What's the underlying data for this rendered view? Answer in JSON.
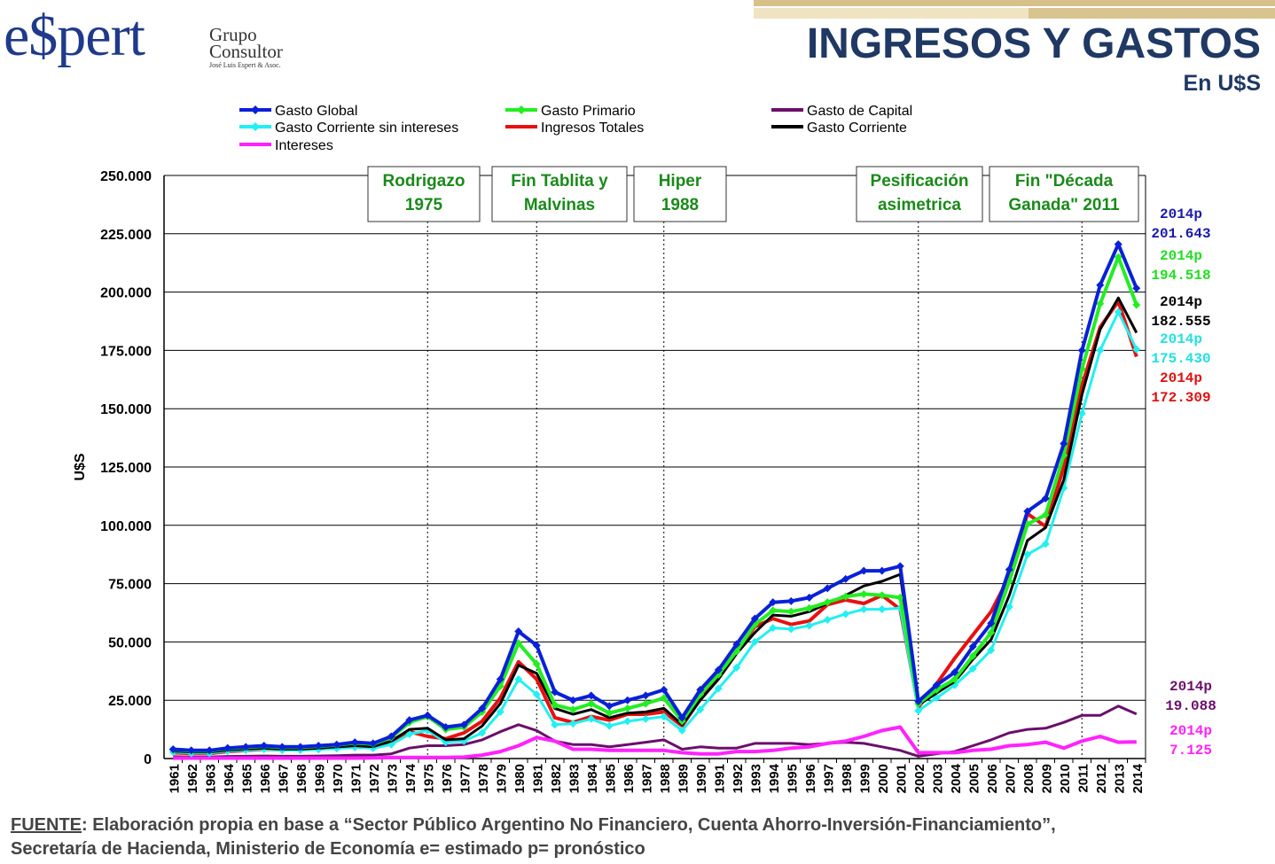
{
  "logo": {
    "word": "e$pert",
    "line1": "Grupo",
    "line2": "Consultor",
    "tagline": "José Luis Espert & Asoc."
  },
  "header": {
    "title": "INGRESOS Y GASTOS",
    "subtitle": "En U$S"
  },
  "footer": {
    "source_label": "FUENTE",
    "text_line1": ": Elaboración propia en base a “Sector Público Argentino No Financiero, Cuenta Ahorro-Inversión-Financiamiento”,",
    "text_line2": "Secretaría de Hacienda, Ministerio de Economía e= estimado p= pronóstico"
  },
  "chart_data": {
    "type": "line",
    "ylabel": "U$S",
    "ylim": [
      0,
      250000
    ],
    "yticks": [
      0,
      25000,
      50000,
      75000,
      100000,
      125000,
      150000,
      175000,
      200000,
      225000,
      250000
    ],
    "ytick_labels": [
      "0",
      "25.000",
      "50.000",
      "75.000",
      "100.000",
      "125.000",
      "150.000",
      "175.000",
      "200.000",
      "225.000",
      "250.000"
    ],
    "grid": "horizontal",
    "categories": [
      "1961",
      "1962",
      "1963",
      "1964",
      "1965",
      "1966",
      "1967",
      "1968",
      "1969",
      "1970",
      "1971",
      "1972",
      "1973",
      "1974",
      "1975",
      "1976",
      "1977",
      "1978",
      "1979",
      "1980",
      "1981",
      "1982",
      "1983",
      "1984",
      "1985",
      "1986",
      "1987",
      "1988",
      "1989",
      "1990",
      "1991",
      "1992",
      "1993",
      "1994",
      "1995",
      "1996",
      "1997",
      "1998",
      "1999",
      "2000",
      "2001",
      "2002",
      "2003",
      "2004",
      "2005",
      "2006",
      "2007",
      "2008",
      "2009",
      "2010",
      "2011",
      "2012",
      "2013",
      "2014"
    ],
    "legend": [
      {
        "name": "Gasto Global",
        "color": "#0a20d8",
        "marker": "diamond"
      },
      {
        "name": "Gasto Primario",
        "color": "#22ee22",
        "marker": "diamond"
      },
      {
        "name": "Gasto de Capital",
        "color": "#6a0f6a",
        "marker": "none"
      },
      {
        "name": "Gasto Corriente sin intereses",
        "color": "#22f0f0",
        "marker": "diamond"
      },
      {
        "name": "Ingresos Totales",
        "color": "#e81010",
        "marker": "none"
      },
      {
        "name": "Gasto Corriente",
        "color": "#000000",
        "marker": "none"
      },
      {
        "name": "Intereses",
        "color": "#ff22ff",
        "marker": "none"
      }
    ],
    "series": [
      {
        "name": "Gasto Global",
        "color": "#0a20d8",
        "marker": "diamond",
        "width": 4,
        "values": [
          4000,
          3500,
          3500,
          4500,
          5000,
          5500,
          5000,
          5000,
          5500,
          6000,
          7000,
          6500,
          9500,
          16500,
          18500,
          13500,
          14500,
          21500,
          34000,
          54500,
          48500,
          28500,
          25000,
          27000,
          22500,
          25000,
          27000,
          29500,
          17500,
          29500,
          38000,
          49000,
          60000,
          67000,
          67500,
          69000,
          73000,
          77000,
          80500,
          80500,
          82500,
          24500,
          31500,
          37000,
          48000,
          58000,
          81000,
          106000,
          111500,
          135000,
          175000,
          203000,
          220500,
          201643
        ]
      },
      {
        "name": "Gasto Primario",
        "color": "#22ee22",
        "marker": "diamond",
        "width": 4,
        "values": [
          3800,
          3300,
          3300,
          4300,
          4800,
          5300,
          4800,
          4800,
          5300,
          5800,
          6700,
          6200,
          9000,
          15500,
          18000,
          12500,
          13500,
          20000,
          31000,
          49500,
          40500,
          23000,
          21000,
          23500,
          19500,
          21500,
          23500,
          26000,
          16000,
          27500,
          36000,
          46000,
          57500,
          63500,
          63000,
          64500,
          67000,
          69500,
          70500,
          70000,
          69000,
          23500,
          29500,
          34000,
          44000,
          54000,
          76000,
          100500,
          104500,
          130000,
          167000,
          195000,
          215000,
          194518
        ]
      },
      {
        "name": "Gasto de Capital",
        "color": "#6a0f6a",
        "marker": "none",
        "width": 3,
        "values": [
          800,
          700,
          700,
          900,
          1000,
          1100,
          1000,
          1000,
          1100,
          1200,
          1500,
          1500,
          2000,
          4500,
          5500,
          5500,
          6000,
          8000,
          11500,
          14500,
          12000,
          7500,
          6000,
          6000,
          5000,
          6000,
          7000,
          8000,
          4000,
          5000,
          4500,
          4500,
          6500,
          6500,
          6500,
          6000,
          6500,
          7000,
          6500,
          5000,
          3500,
          1000,
          2000,
          3000,
          5500,
          8000,
          11000,
          12500,
          13000,
          15500,
          18500,
          18500,
          22500,
          19088
        ]
      },
      {
        "name": "Gasto Corriente sin intereses",
        "color": "#22f0f0",
        "marker": "diamond",
        "width": 3,
        "values": [
          2800,
          2300,
          2300,
          3200,
          3600,
          4000,
          3600,
          3600,
          3900,
          4300,
          4800,
          4400,
          6000,
          10500,
          12000,
          7000,
          7500,
          11000,
          20000,
          34000,
          27500,
          14500,
          15000,
          17000,
          14000,
          16000,
          17000,
          18000,
          12000,
          21000,
          30000,
          39000,
          50000,
          56000,
          55500,
          57000,
          59500,
          62000,
          64000,
          64000,
          64500,
          20500,
          26000,
          31500,
          38500,
          46500,
          65000,
          87500,
          92000,
          116000,
          148000,
          175000,
          191500,
          175430
        ]
      },
      {
        "name": "Ingresos Totales",
        "color": "#e81010",
        "marker": "none",
        "width": 4,
        "values": [
          2500,
          2200,
          2200,
          3000,
          3500,
          4000,
          3800,
          3800,
          4500,
          5500,
          6000,
          5500,
          7000,
          11500,
          9500,
          8500,
          11000,
          16000,
          26000,
          41500,
          34000,
          17500,
          15500,
          18000,
          16500,
          19000,
          19000,
          20000,
          14000,
          25500,
          36000,
          46000,
          56500,
          60000,
          57500,
          59000,
          66000,
          68000,
          66500,
          70000,
          64000,
          22000,
          32000,
          43000,
          53000,
          63000,
          78000,
          105000,
          99500,
          125000,
          160000,
          185000,
          196000,
          172309
        ]
      },
      {
        "name": "Gasto Corriente",
        "color": "#000000",
        "marker": "none",
        "width": 3,
        "values": [
          3200,
          2800,
          2800,
          3600,
          4100,
          4500,
          4100,
          4100,
          4500,
          5000,
          5500,
          5100,
          7500,
          12500,
          13000,
          8000,
          8500,
          14000,
          23500,
          40000,
          36500,
          21500,
          19000,
          21000,
          17500,
          19500,
          20000,
          21500,
          14500,
          25000,
          34000,
          45000,
          54000,
          61500,
          61000,
          63000,
          66500,
          70000,
          74000,
          76000,
          79000,
          23000,
          28000,
          33000,
          42500,
          51000,
          70000,
          93500,
          99000,
          119500,
          156000,
          184000,
          197500,
          182555
        ]
      },
      {
        "name": "Intereses",
        "color": "#ff22ff",
        "marker": "none",
        "width": 4,
        "values": [
          200,
          200,
          200,
          200,
          200,
          200,
          200,
          200,
          200,
          200,
          200,
          300,
          400,
          500,
          500,
          500,
          600,
          1500,
          3000,
          5500,
          9000,
          7500,
          4000,
          4000,
          3500,
          3500,
          3500,
          3500,
          2500,
          2000,
          2000,
          3000,
          3000,
          3500,
          4500,
          5000,
          6500,
          7500,
          9500,
          12000,
          13500,
          2500,
          2500,
          2500,
          3500,
          4000,
          5500,
          6000,
          7000,
          4500,
          7500,
          9500,
          7000,
          7125
        ]
      }
    ],
    "events": [
      {
        "label_line1": "Rodrigazo",
        "label_line2": "1975",
        "year": "1975"
      },
      {
        "label_line1": "Fin Tablita y",
        "label_line2": "Malvinas",
        "year": "1981"
      },
      {
        "label_line1": "Hiper",
        "label_line2": "1988",
        "year": "1988"
      },
      {
        "label_line1": "Pesificación",
        "label_line2": "asimetrica",
        "year": "2002"
      },
      {
        "label_line1": "Fin \"Década",
        "label_line2": "Ganada\" 2011",
        "year": "2011"
      }
    ],
    "end_labels": [
      {
        "year_label": "2014p",
        "value_label": "201.643",
        "color": "#1a1aaa"
      },
      {
        "year_label": "2014p",
        "value_label": "194.518",
        "color": "#22dd22"
      },
      {
        "year_label": "2014p",
        "value_label": "182.555",
        "color": "#000000"
      },
      {
        "year_label": "2014p",
        "value_label": "175.430",
        "color": "#22e0e0"
      },
      {
        "year_label": "2014p",
        "value_label": "172.309",
        "color": "#dd1010"
      },
      {
        "year_label": "2014p",
        "value_label": "19.088",
        "color": "#6a0f6a"
      },
      {
        "year_label": "2014p",
        "value_label": "7.125",
        "color": "#ff22ff"
      }
    ]
  }
}
